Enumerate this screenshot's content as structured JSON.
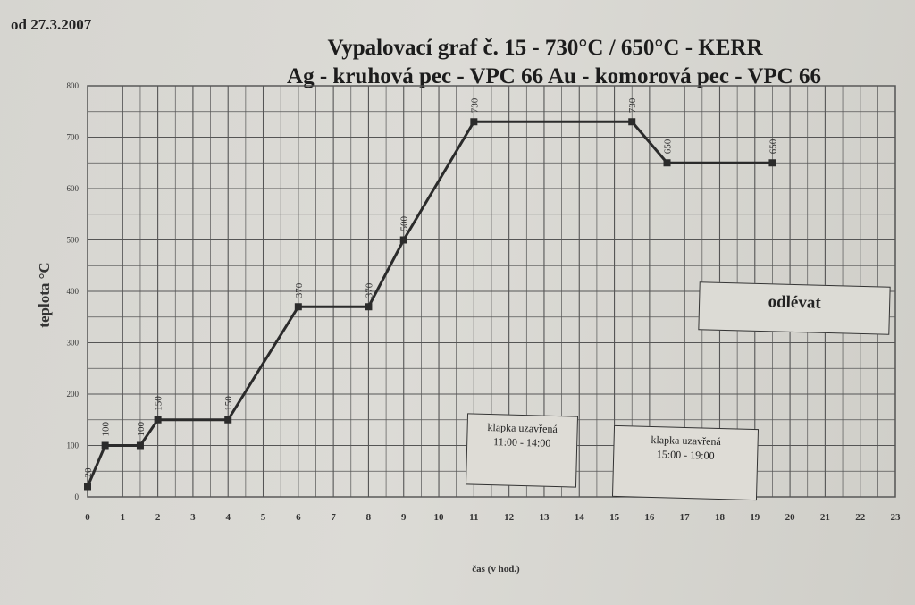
{
  "page": {
    "date": "od 27.3.2007"
  },
  "chart_data": {
    "type": "line",
    "title": "Vypalovací graf č. 15 - 730°C / 650°C - KERR",
    "subtitle": "Ag - kruhová pec - VPC 66    Au - komorová pec - VPC 66",
    "xlabel": "čas (v hod.)",
    "ylabel": "teplota °C",
    "xlim": [
      0,
      23
    ],
    "ylim": [
      0,
      800
    ],
    "grid": true,
    "x_ticks": [
      "0",
      "1",
      "2",
      "3",
      "4",
      "5",
      "6",
      "7",
      "8",
      "9",
      "10",
      "11",
      "12",
      "13",
      "14",
      "15",
      "16",
      "17",
      "18",
      "19",
      "20",
      "21",
      "22",
      "23"
    ],
    "y_ticks": [
      "0",
      "100",
      "200",
      "300",
      "400",
      "500",
      "600",
      "700",
      "800"
    ],
    "series": [
      {
        "x": [
          0,
          0.5,
          1.5,
          2,
          4,
          6,
          8,
          9,
          11,
          15.5,
          16.5,
          19.5
        ],
        "y": [
          20,
          100,
          100,
          150,
          150,
          370,
          370,
          500,
          730,
          730,
          650,
          650
        ],
        "labels": [
          "20",
          "100",
          "100",
          "150",
          "150",
          "370",
          "370",
          "500",
          "730",
          "730",
          "650",
          "650"
        ]
      }
    ],
    "annotations": [
      {
        "text": "klapka uzavřená",
        "text2": "11:00 - 14:00"
      },
      {
        "text": "klapka uzavřená",
        "text2": "15:00 - 19:00"
      },
      {
        "text": "odlévat"
      }
    ]
  }
}
